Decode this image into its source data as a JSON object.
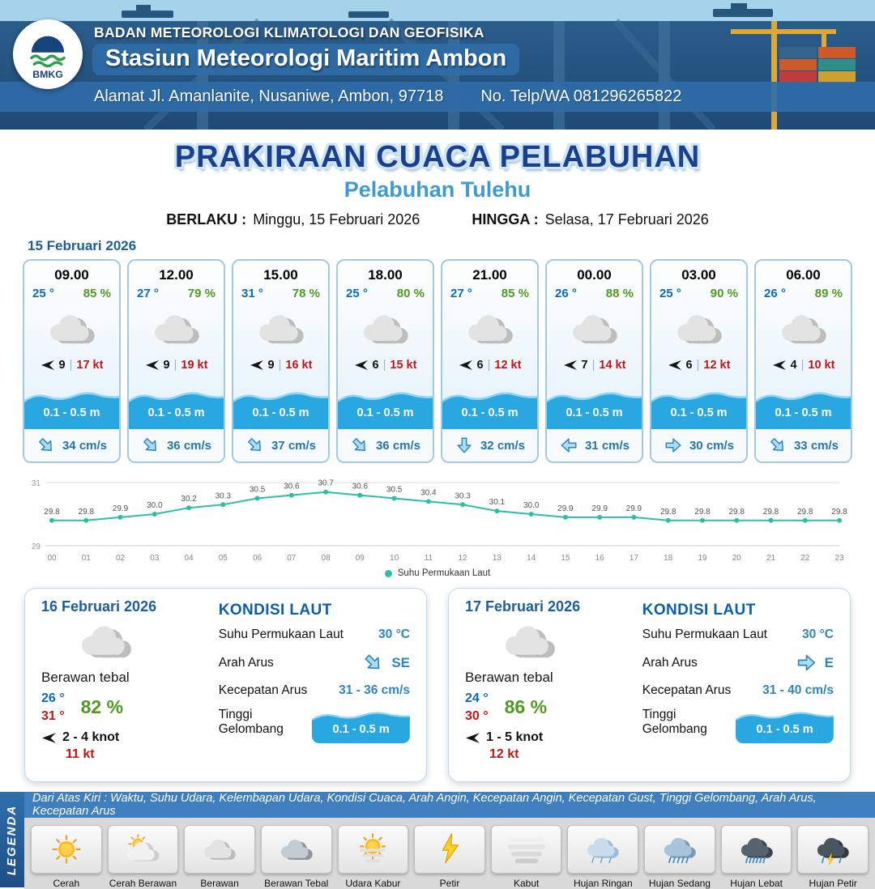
{
  "header": {
    "logo_label": "BMKG",
    "org": "BADAN METEOROLOGI KLIMATOLOGI DAN GEOFISIKA",
    "station": "Stasiun Meteorologi Maritim Ambon",
    "address": "Alamat Jl. Amanlanite, Nusaniwe, Ambon, 97718",
    "phone": "No. Telp/WA  081296265822"
  },
  "title": {
    "main": "PRAKIRAAN CUACA PELABUHAN",
    "sub": "Pelabuhan Tulehu",
    "berlaku_label": "BERLAKU :",
    "berlaku_value": "Minggu, 15 Februari 2026",
    "hingga_label": "HINGGA :",
    "hingga_value": "Selasa, 17 Februari 2026"
  },
  "forecast_date": "15 Februari 2026",
  "forecast_cards": [
    {
      "time": "09.00",
      "temp": "25 °",
      "humidity": "85 %",
      "weather_icon": "cloud",
      "wind_speed": "9",
      "gust": "17 kt",
      "wave_height": "0.1 - 0.5 m",
      "current_speed": "34 cm/s",
      "current_dir": "SE"
    },
    {
      "time": "12.00",
      "temp": "27 °",
      "humidity": "79 %",
      "weather_icon": "cloud",
      "wind_speed": "9",
      "gust": "19 kt",
      "wave_height": "0.1 - 0.5 m",
      "current_speed": "36 cm/s",
      "current_dir": "SE"
    },
    {
      "time": "15.00",
      "temp": "31 °",
      "humidity": "78 %",
      "weather_icon": "cloud",
      "wind_speed": "9",
      "gust": "16 kt",
      "wave_height": "0.1 - 0.5 m",
      "current_speed": "37 cm/s",
      "current_dir": "SE"
    },
    {
      "time": "18.00",
      "temp": "25 °",
      "humidity": "80 %",
      "weather_icon": "cloud",
      "wind_speed": "6",
      "gust": "15 kt",
      "wave_height": "0.1 - 0.5 m",
      "current_speed": "36 cm/s",
      "current_dir": "SE"
    },
    {
      "time": "21.00",
      "temp": "27 °",
      "humidity": "85 %",
      "weather_icon": "cloud",
      "wind_speed": "6",
      "gust": "12 kt",
      "wave_height": "0.1 - 0.5 m",
      "current_speed": "32 cm/s",
      "current_dir": "S"
    },
    {
      "time": "00.00",
      "temp": "26 °",
      "humidity": "88 %",
      "weather_icon": "cloud",
      "wind_speed": "7",
      "gust": "14 kt",
      "wave_height": "0.1 - 0.5 m",
      "current_speed": "31 cm/s",
      "current_dir": "W"
    },
    {
      "time": "03.00",
      "temp": "25 °",
      "humidity": "90 %",
      "weather_icon": "cloud",
      "wind_speed": "6",
      "gust": "12 kt",
      "wave_height": "0.1 - 0.5 m",
      "current_speed": "30 cm/s",
      "current_dir": "E"
    },
    {
      "time": "06.00",
      "temp": "26 °",
      "humidity": "89 %",
      "weather_icon": "cloud",
      "wind_speed": "4",
      "gust": "10 kt",
      "wave_height": "0.1 - 0.5 m",
      "current_speed": "33 cm/s",
      "current_dir": "SE"
    }
  ],
  "chart_data": {
    "type": "line",
    "series_name": "Suhu Permukaan Laut",
    "x": [
      "00",
      "01",
      "02",
      "03",
      "04",
      "05",
      "06",
      "07",
      "08",
      "09",
      "10",
      "11",
      "12",
      "13",
      "14",
      "15",
      "16",
      "17",
      "18",
      "19",
      "20",
      "21",
      "22",
      "23"
    ],
    "values": [
      29.8,
      29.8,
      29.9,
      30.0,
      30.2,
      30.3,
      30.5,
      30.6,
      30.7,
      30.6,
      30.5,
      30.4,
      30.3,
      30.1,
      30.0,
      29.9,
      29.9,
      29.9,
      29.8,
      29.8,
      29.8,
      29.8,
      29.8,
      29.8
    ],
    "ylim": [
      29,
      31
    ],
    "line_color": "#2dbfa6",
    "legend_position": "bottom",
    "grid": true
  },
  "daily_labels": {
    "sea_title": "KONDISI LAUT",
    "sst_label": "Suhu Permukaan Laut",
    "current_dir_label": "Arah Arus",
    "current_speed_label": "Kecepatan Arus",
    "wave_label": "Tinggi Gelombang"
  },
  "daily_cards": [
    {
      "date": "16 Februari 2026",
      "condition": "Berawan tebal",
      "weather_icon": "cloud",
      "temp_min": "26 °",
      "temp_max": "31 °",
      "humidity": "82 %",
      "wind": "2 - 4 knot",
      "gust": "11 kt",
      "sst_value": "30 °C",
      "current_dir": "SE",
      "current_speed": "31 - 36 cm/s",
      "wave_height": "0.1 - 0.5 m"
    },
    {
      "date": "17 Februari 2026",
      "condition": "Berawan tebal",
      "weather_icon": "cloud",
      "temp_min": "24 °",
      "temp_max": "30 °",
      "humidity": "86 %",
      "wind": "1 - 5 knot",
      "gust": "12 kt",
      "sst_value": "30 °C",
      "current_dir": "E",
      "current_speed": "31 - 40 cm/s",
      "wave_height": "0.1 - 0.5 m"
    }
  ],
  "legend": {
    "vertical_label": "LEGENDA",
    "note": "Dari Atas Kiri : Waktu, Suhu Udara, Kelembapan Udara, Kondisi Cuaca, Arah Angin, Kecepatan Angin, Kecepatan Gust, Tinggi Gelombang, Arah Arus, Kecepatan Arus",
    "items": [
      {
        "label": "Cerah",
        "icon": "sun"
      },
      {
        "label": "Cerah Berawan",
        "icon": "sun-cloud"
      },
      {
        "label": "Berawan",
        "icon": "cloud"
      },
      {
        "label": "Berawan Tebal",
        "icon": "cloud-thick"
      },
      {
        "label": "Udara Kabur",
        "icon": "haze"
      },
      {
        "label": "Petir",
        "icon": "bolt"
      },
      {
        "label": "Kabut",
        "icon": "fog"
      },
      {
        "label": "Hujan Ringan",
        "icon": "rain-light"
      },
      {
        "label": "Hujan Sedang",
        "icon": "rain-mid"
      },
      {
        "label": "Hujan Lebat",
        "icon": "rain-heavy"
      },
      {
        "label": "Hujan Petir",
        "icon": "storm"
      }
    ]
  },
  "colors": {
    "header_blue": "#24527e",
    "bar_blue": "#2f6da8",
    "title_blue": "#1a3f8f",
    "subtitle_blue": "#3d9ad3",
    "temp_blue": "#0a6bc2",
    "humidity_green": "#4e9b1f",
    "gust_red": "#c81414",
    "wave_blue": "#29a7e1",
    "current_blue": "#2e86c1",
    "chart_teal": "#2dbfa6"
  }
}
